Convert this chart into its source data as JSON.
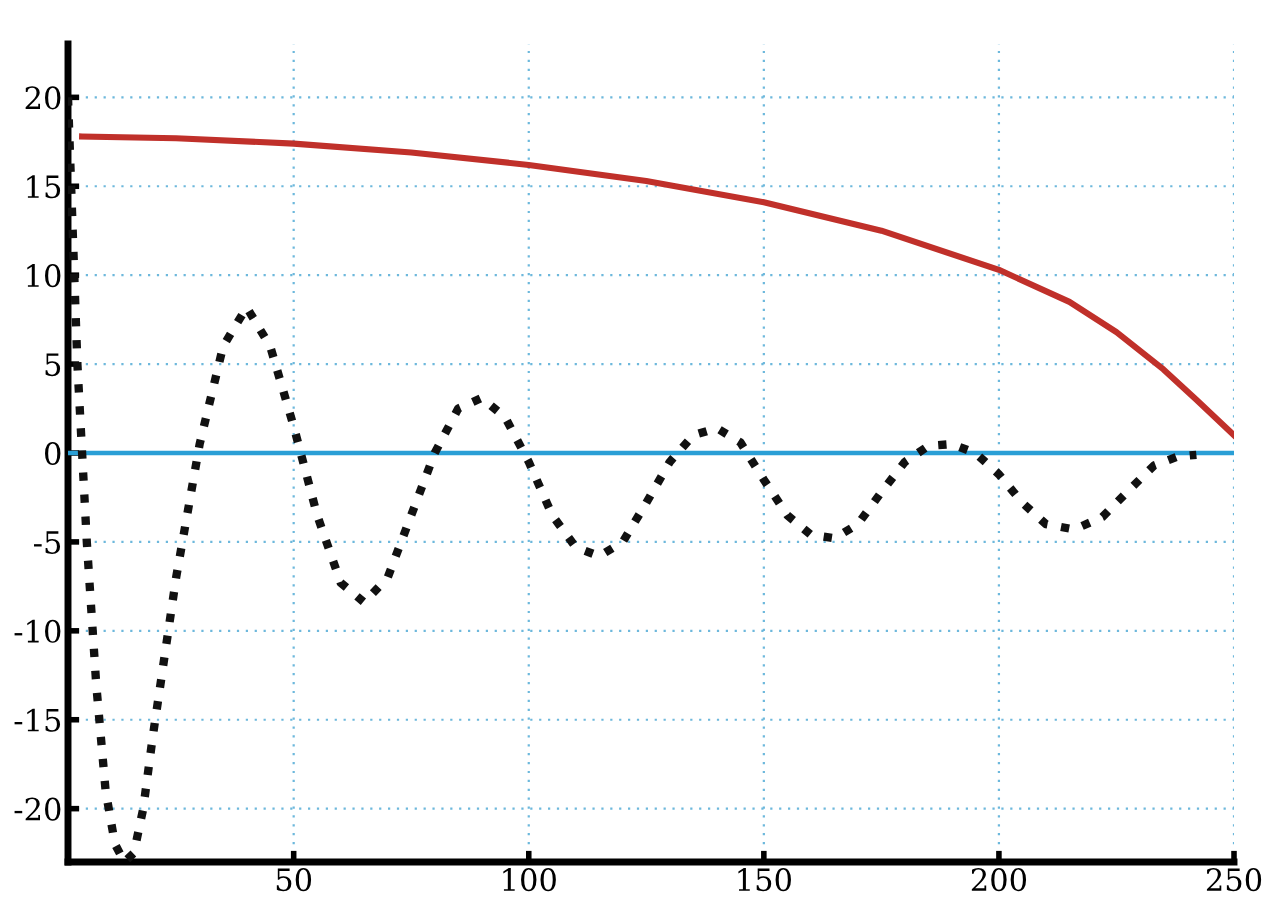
{
  "chart_data": {
    "type": "line",
    "xlim": [
      2,
      250
    ],
    "ylim": [
      -23,
      23
    ],
    "xticks": [
      50,
      100,
      150,
      200,
      250
    ],
    "yticks": [
      -20,
      -15,
      -10,
      -5,
      0,
      5,
      10,
      15,
      20
    ],
    "grid": true,
    "marker": "none",
    "series": [
      {
        "color": "#c0302a",
        "line_style": "solid",
        "x": [
          5,
          25,
          50,
          75,
          100,
          125,
          150,
          175,
          200,
          215,
          225,
          235,
          242,
          250
        ],
        "values": [
          17.8,
          17.7,
          17.4,
          16.9,
          16.2,
          15.3,
          14.1,
          12.5,
          10.3,
          8.5,
          6.8,
          4.7,
          3.0,
          1.0
        ]
      },
      {
        "color": "#2a9fd6",
        "line_style": "solid",
        "x": [
          2,
          250
        ],
        "values": [
          0,
          0
        ]
      },
      {
        "color": "#111111",
        "line_style": "dotted",
        "x": [
          2,
          4,
          6,
          8,
          10,
          12,
          14,
          16,
          18,
          20,
          25,
          30,
          35,
          40,
          45,
          50,
          55,
          60,
          65,
          70,
          75,
          80,
          85,
          90,
          95,
          100,
          105,
          110,
          115,
          120,
          125,
          130,
          135,
          140,
          145,
          150,
          155,
          160,
          165,
          170,
          175,
          180,
          185,
          190,
          195,
          200,
          205,
          210,
          216,
          222,
          228,
          233,
          238,
          242
        ],
        "values": [
          20,
          5,
          -5,
          -13,
          -19,
          -22,
          -23,
          -22.5,
          -20,
          -16,
          -7,
          0.5,
          6,
          8.2,
          6,
          1.5,
          -3.5,
          -7.3,
          -8.4,
          -7,
          -3.5,
          0,
          2.5,
          3.1,
          2,
          -0.5,
          -3.5,
          -5.3,
          -5.8,
          -5,
          -2.8,
          -0.5,
          1,
          1.4,
          0.6,
          -1.5,
          -3.5,
          -4.6,
          -4.8,
          -4,
          -2.2,
          -0.5,
          0.4,
          0.5,
          0,
          -1.2,
          -2.8,
          -4,
          -4.3,
          -3.6,
          -2,
          -0.7,
          -0.2,
          -0.1
        ]
      }
    ]
  }
}
